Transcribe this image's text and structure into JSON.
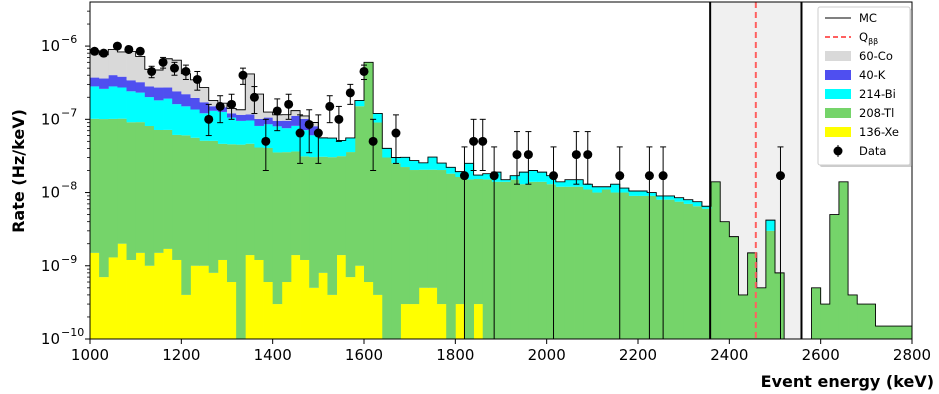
{
  "chart_data": {
    "type": "histogram",
    "xlabel": "Event energy (keV)",
    "ylabel": "Rate (Hz/keV)",
    "xlim": [
      1000,
      2800
    ],
    "ylim": [
      1e-10,
      4e-06
    ],
    "yscale": "log",
    "x_ticks": [
      1000,
      1200,
      1400,
      1600,
      1800,
      2000,
      2200,
      2400,
      2600,
      2800
    ],
    "y_ticks": [
      {
        "value": 1e-10,
        "label": "10",
        "exp": "−10"
      },
      {
        "value": 1e-09,
        "label": "10",
        "exp": "−9"
      },
      {
        "value": 1e-08,
        "label": "10",
        "exp": "−8"
      },
      {
        "value": 1e-07,
        "label": "10",
        "exp": "−7"
      },
      {
        "value": 1e-06,
        "label": "10",
        "exp": "−6"
      }
    ],
    "bin_edges": [
      1000,
      1020,
      1040,
      1060,
      1080,
      1100,
      1120,
      1140,
      1160,
      1180,
      1200,
      1220,
      1240,
      1260,
      1280,
      1300,
      1320,
      1340,
      1360,
      1380,
      1400,
      1420,
      1440,
      1460,
      1480,
      1500,
      1520,
      1540,
      1560,
      1580,
      1600,
      1620,
      1640,
      1660,
      1680,
      1700,
      1720,
      1740,
      1760,
      1780,
      1800,
      1820,
      1840,
      1860,
      1880,
      1900,
      1920,
      1940,
      1960,
      1980,
      2000,
      2020,
      2040,
      2060,
      2080,
      2100,
      2120,
      2140,
      2160,
      2180,
      2200,
      2220,
      2240,
      2260,
      2280,
      2300,
      2320,
      2340,
      2360,
      2380,
      2400,
      2420,
      2440,
      2460,
      2480,
      2500,
      2520,
      2540,
      2560,
      2580,
      2600,
      2620,
      2640,
      2660,
      2680,
      2700,
      2720,
      2740,
      2760,
      2780,
      2800
    ],
    "stacked_series": [
      {
        "name": "136-Xe",
        "color": "#ffff00",
        "values": [
          1.5e-09,
          7e-10,
          1.3e-09,
          2e-09,
          1.2e-09,
          1.5e-09,
          1e-09,
          1.5e-09,
          1.7e-09,
          1.2e-09,
          4e-10,
          1e-09,
          1e-09,
          8e-10,
          1.2e-09,
          6e-10,
          1e-10,
          1.4e-09,
          1.2e-09,
          6e-10,
          3e-10,
          6e-10,
          1.4e-09,
          1.2e-09,
          5e-10,
          8e-10,
          4e-10,
          1.4e-09,
          7e-10,
          1e-09,
          6e-10,
          4e-10,
          1e-10,
          1e-10,
          3e-10,
          3e-10,
          5e-10,
          5e-10,
          3e-10,
          1e-10,
          3e-10,
          1e-10,
          3e-10,
          1e-10,
          0,
          0,
          0,
          0,
          0,
          0,
          0,
          0,
          0,
          0,
          0,
          0,
          0,
          0,
          0,
          0,
          0,
          0,
          0,
          0,
          0,
          0,
          0,
          0,
          0,
          0,
          0,
          0,
          0,
          0,
          0,
          0,
          0,
          0,
          0,
          0,
          0,
          0,
          0,
          0,
          0,
          0,
          0,
          0,
          0,
          0
        ]
      },
      {
        "name": "208-Tl",
        "color": "#75d46a",
        "values": [
          1e-07,
          1e-07,
          1e-07,
          1e-07,
          9e-08,
          9e-08,
          8e-08,
          7e-08,
          7e-08,
          6e-08,
          6e-08,
          5.5e-08,
          5e-08,
          5e-08,
          4.5e-08,
          4.5e-08,
          4.5e-08,
          4.5e-08,
          4e-08,
          4e-08,
          3.5e-08,
          3.5e-08,
          3.5e-08,
          3e-08,
          3e-08,
          3e-08,
          3e-08,
          3e-08,
          3.5e-08,
          1.5e-07,
          6e-07,
          9e-08,
          3e-08,
          2.5e-08,
          2.2e-08,
          2e-08,
          2e-08,
          2e-08,
          2e-08,
          1.8e-08,
          1.6e-08,
          1.5e-08,
          1.5e-08,
          1.5e-08,
          1.4e-08,
          1.4e-08,
          1.5e-08,
          1.3e-08,
          1.4e-08,
          1.4e-08,
          1.3e-08,
          1.2e-08,
          1.2e-08,
          1.2e-08,
          1.1e-08,
          1e-08,
          1.1e-08,
          1e-08,
          1e-08,
          9e-09,
          9e-09,
          9e-09,
          8e-09,
          8e-09,
          7.5e-09,
          7e-09,
          6.5e-09,
          6e-09,
          1.4e-08,
          4e-09,
          2.5e-09,
          4e-10,
          1.5e-09,
          5e-10,
          3e-09,
          8e-10,
          0,
          0,
          0,
          5e-10,
          3e-10,
          5e-09,
          1.4e-08,
          4e-10,
          3e-10,
          3e-10,
          1.5e-10,
          1.5e-10,
          1.5e-10,
          1.5e-10
        ]
      },
      {
        "name": "214-Bi",
        "color": "#00ffff",
        "values": [
          1.8e-07,
          1.6e-07,
          1.8e-07,
          1.7e-07,
          1.5e-07,
          1.4e-07,
          1.2e-07,
          1.1e-07,
          1.2e-07,
          1e-07,
          9e-08,
          8e-08,
          7e-08,
          8e-08,
          8e-08,
          6e-08,
          5e-08,
          5e-08,
          4e-08,
          4.5e-08,
          4.5e-08,
          4e-08,
          4.5e-08,
          4e-08,
          3e-08,
          2.5e-08,
          2.5e-08,
          2e-08,
          2e-08,
          3e-08,
          0,
          3e-08,
          1e-08,
          5e-09,
          8e-09,
          7e-09,
          5e-09,
          1e-08,
          5e-09,
          4e-09,
          3e-09,
          1e-08,
          2e-09,
          3e-09,
          5e-09,
          1e-09,
          2e-09,
          6e-09,
          6e-09,
          5e-09,
          4e-09,
          2e-09,
          3e-09,
          3e-09,
          2e-09,
          2e-09,
          1e-09,
          3e-09,
          1.5e-09,
          1.5e-09,
          1.5e-09,
          1e-09,
          1e-09,
          1e-09,
          1e-09,
          1e-09,
          1e-09,
          5e-10,
          0,
          0,
          0,
          0,
          0,
          0,
          1.2e-09,
          0,
          0,
          0,
          0,
          0,
          0,
          0,
          0,
          0,
          0,
          0,
          0,
          0,
          0,
          0
        ]
      },
      {
        "name": "40-K",
        "color": "#4f4ff0",
        "values": [
          9e-08,
          1e-07,
          1.2e-07,
          1.1e-07,
          1e-07,
          9e-08,
          8e-08,
          9e-08,
          8e-08,
          8e-08,
          7e-08,
          6e-08,
          5e-08,
          2e-08,
          2e-08,
          1.5e-08,
          2e-08,
          2e-08,
          2e-08,
          2e-08,
          1.5e-08,
          2e-08,
          3e-08,
          3e-08,
          2e-08,
          0,
          0,
          0,
          0,
          0,
          0,
          0,
          0,
          0,
          0,
          0,
          0,
          0,
          0,
          0,
          0,
          0,
          0,
          0,
          0,
          0,
          0,
          0,
          0,
          0,
          0,
          0,
          0,
          0,
          0,
          0,
          0,
          0,
          0,
          0,
          0,
          0,
          0,
          0,
          0,
          0,
          0,
          0,
          0,
          0,
          0,
          0,
          0,
          0,
          0,
          0,
          0,
          0,
          0,
          0,
          0,
          0,
          0,
          0,
          0,
          0,
          0,
          0,
          0,
          0
        ]
      },
      {
        "name": "60-Co",
        "color": "#d9d9d9",
        "values": [
          5e-07,
          4e-07,
          5e-07,
          4.5e-07,
          5e-07,
          4e-07,
          2e-07,
          2e-07,
          4e-07,
          4e-07,
          2e-07,
          1.5e-07,
          1e-07,
          3e-08,
          2e-08,
          2e-08,
          2e-08,
          3e-07,
          1.2e-07,
          2e-08,
          2e-08,
          2e-08,
          2e-08,
          1e-08,
          1e-08,
          0,
          0,
          0,
          0,
          0,
          0,
          0,
          0,
          0,
          0,
          0,
          0,
          0,
          0,
          0,
          0,
          0,
          0,
          0,
          0,
          0,
          0,
          0,
          0,
          0,
          0,
          0,
          0,
          0,
          0,
          0,
          0,
          0,
          0,
          0,
          0,
          0,
          0,
          0,
          0,
          0,
          0,
          0,
          0,
          0,
          0,
          0,
          0,
          0,
          0,
          0,
          0,
          0,
          0,
          0,
          0,
          0,
          0,
          0,
          0,
          0,
          0,
          0,
          0,
          0
        ]
      }
    ],
    "mc_line": {
      "name": "MC",
      "color": "#000000"
    },
    "q_bb": {
      "label": "Q",
      "sub": "ββ",
      "x": 2458,
      "color": "#ff6060"
    },
    "roi": {
      "x_start": 2358,
      "x_end": 2558,
      "color": "#f0f0f0"
    },
    "data": {
      "name": "Data",
      "points": [
        {
          "x": 1010,
          "y": 8.5e-07,
          "err_lo": 8e-08,
          "err_hi": 8e-08
        },
        {
          "x": 1030,
          "y": 8e-07,
          "err_lo": 8e-08,
          "err_hi": 8e-08
        },
        {
          "x": 1060,
          "y": 1e-06,
          "err_lo": 8e-08,
          "err_hi": 8e-08
        },
        {
          "x": 1085,
          "y": 9e-07,
          "err_lo": 8e-08,
          "err_hi": 8e-08
        },
        {
          "x": 1110,
          "y": 8.5e-07,
          "err_lo": 8e-08,
          "err_hi": 8e-08
        },
        {
          "x": 1135,
          "y": 4.5e-07,
          "err_lo": 8e-08,
          "err_hi": 8e-08
        },
        {
          "x": 1160,
          "y": 6e-07,
          "err_lo": 1e-07,
          "err_hi": 1e-07
        },
        {
          "x": 1185,
          "y": 5e-07,
          "err_lo": 1e-07,
          "err_hi": 1e-07
        },
        {
          "x": 1210,
          "y": 4.5e-07,
          "err_lo": 1e-07,
          "err_hi": 1e-07
        },
        {
          "x": 1235,
          "y": 3.5e-07,
          "err_lo": 1e-07,
          "err_hi": 1e-07
        },
        {
          "x": 1260,
          "y": 1e-07,
          "err_lo": 4e-08,
          "err_hi": 6e-08
        },
        {
          "x": 1285,
          "y": 1.5e-07,
          "err_lo": 6e-08,
          "err_hi": 6e-08
        },
        {
          "x": 1310,
          "y": 1.6e-07,
          "err_lo": 6e-08,
          "err_hi": 6e-08
        },
        {
          "x": 1335,
          "y": 4e-07,
          "err_lo": 1e-07,
          "err_hi": 1e-07
        },
        {
          "x": 1360,
          "y": 2e-07,
          "err_lo": 8e-08,
          "err_hi": 8e-08
        },
        {
          "x": 1385,
          "y": 5e-08,
          "err_lo": 3e-08,
          "err_hi": 5e-08
        },
        {
          "x": 1410,
          "y": 1.3e-07,
          "err_lo": 6e-08,
          "err_hi": 6e-08
        },
        {
          "x": 1435,
          "y": 1.6e-07,
          "err_lo": 6e-08,
          "err_hi": 6e-08
        },
        {
          "x": 1460,
          "y": 6.5e-08,
          "err_lo": 4e-08,
          "err_hi": 5e-08
        },
        {
          "x": 1480,
          "y": 8.5e-08,
          "err_lo": 5e-08,
          "err_hi": 5e-08
        },
        {
          "x": 1500,
          "y": 6.5e-08,
          "err_lo": 4e-08,
          "err_hi": 5e-08
        },
        {
          "x": 1525,
          "y": 1.5e-07,
          "err_lo": 6e-08,
          "err_hi": 6e-08
        },
        {
          "x": 1545,
          "y": 1e-07,
          "err_lo": 5e-08,
          "err_hi": 5e-08
        },
        {
          "x": 1570,
          "y": 2.3e-07,
          "err_lo": 7e-08,
          "err_hi": 7e-08
        },
        {
          "x": 1600,
          "y": 4.5e-07,
          "err_lo": 1e-07,
          "err_hi": 1e-07
        },
        {
          "x": 1620,
          "y": 5e-08,
          "err_lo": 3e-08,
          "err_hi": 5e-08
        },
        {
          "x": 1670,
          "y": 6.5e-08,
          "err_lo": 4e-08,
          "err_hi": 5e-08
        },
        {
          "x": 1820,
          "y": 1.7e-08,
          "err_lo": 1.69e-08,
          "err_hi": 2.5e-08
        },
        {
          "x": 1840,
          "y": 5e-08,
          "err_lo": 3e-08,
          "err_hi": 5e-08
        },
        {
          "x": 1860,
          "y": 5e-08,
          "err_lo": 3e-08,
          "err_hi": 5e-08
        },
        {
          "x": 1885,
          "y": 1.7e-08,
          "err_lo": 1.69e-08,
          "err_hi": 2.5e-08
        },
        {
          "x": 1935,
          "y": 3.3e-08,
          "err_lo": 2e-08,
          "err_hi": 3.5e-08
        },
        {
          "x": 1960,
          "y": 3.3e-08,
          "err_lo": 2e-08,
          "err_hi": 3.5e-08
        },
        {
          "x": 2015,
          "y": 1.7e-08,
          "err_lo": 1.69e-08,
          "err_hi": 2.5e-08
        },
        {
          "x": 2065,
          "y": 3.3e-08,
          "err_lo": 2e-08,
          "err_hi": 3.5e-08
        },
        {
          "x": 2090,
          "y": 3.3e-08,
          "err_lo": 2e-08,
          "err_hi": 3.5e-08
        },
        {
          "x": 2160,
          "y": 1.7e-08,
          "err_lo": 1.69e-08,
          "err_hi": 2.5e-08
        },
        {
          "x": 2225,
          "y": 1.7e-08,
          "err_lo": 1.69e-08,
          "err_hi": 2.5e-08
        },
        {
          "x": 2255,
          "y": 1.7e-08,
          "err_lo": 1.69e-08,
          "err_hi": 2.5e-08
        },
        {
          "x": 2512,
          "y": 1.7e-08,
          "err_lo": 1.69e-08,
          "err_hi": 2.5e-08
        }
      ]
    },
    "legend": {
      "position": "top-right",
      "entries": [
        {
          "kind": "line",
          "label": "MC",
          "color": "#000000"
        },
        {
          "kind": "dash",
          "label": "Q",
          "sub": "ββ",
          "color": "#ff6060"
        },
        {
          "kind": "patch",
          "label": "60-Co",
          "color": "#d9d9d9"
        },
        {
          "kind": "patch",
          "label": "40-K",
          "color": "#4f4ff0"
        },
        {
          "kind": "patch",
          "label": "214-Bi",
          "color": "#00ffff"
        },
        {
          "kind": "patch",
          "label": "208-Tl",
          "color": "#75d46a"
        },
        {
          "kind": "patch",
          "label": "136-Xe",
          "color": "#ffff00"
        },
        {
          "kind": "marker",
          "label": "Data",
          "color": "#000000"
        }
      ]
    }
  }
}
